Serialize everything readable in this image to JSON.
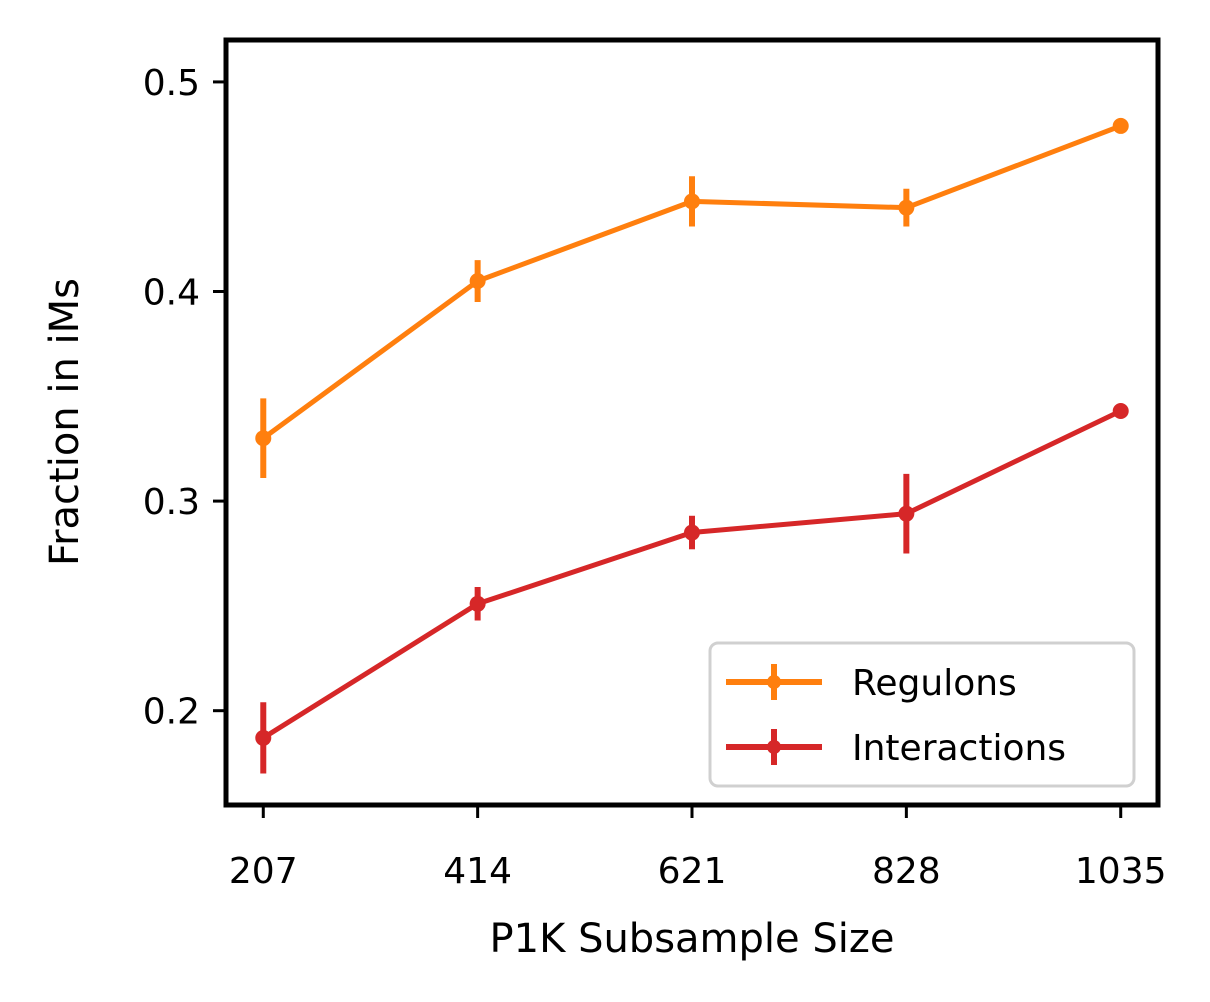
{
  "chart_data": {
    "type": "line",
    "xlabel": "P1K Subsample Size",
    "ylabel": "Fraction in iMs",
    "x": [
      207,
      414,
      621,
      828,
      1035
    ],
    "x_tick_labels": [
      "207",
      "414",
      "621",
      "828",
      "1035"
    ],
    "y_ticks": [
      0.2,
      0.3,
      0.4,
      0.5
    ],
    "y_tick_labels": [
      "0.2",
      "0.3",
      "0.4",
      "0.5"
    ],
    "ylim": [
      0.155,
      0.52
    ],
    "xlim": [
      171,
      1071
    ],
    "grid": false,
    "legend": "lower-right",
    "series": [
      {
        "name": "Regulons",
        "color": "#ff7f0e",
        "values": [
          0.33,
          0.405,
          0.443,
          0.44,
          0.479
        ],
        "errors": [
          0.019,
          0.01,
          0.012,
          0.009,
          0.0
        ]
      },
      {
        "name": "Interactions",
        "color": "#d62728",
        "values": [
          0.187,
          0.251,
          0.285,
          0.294,
          0.343
        ],
        "errors": [
          0.017,
          0.008,
          0.008,
          0.019,
          0.0
        ]
      }
    ]
  }
}
